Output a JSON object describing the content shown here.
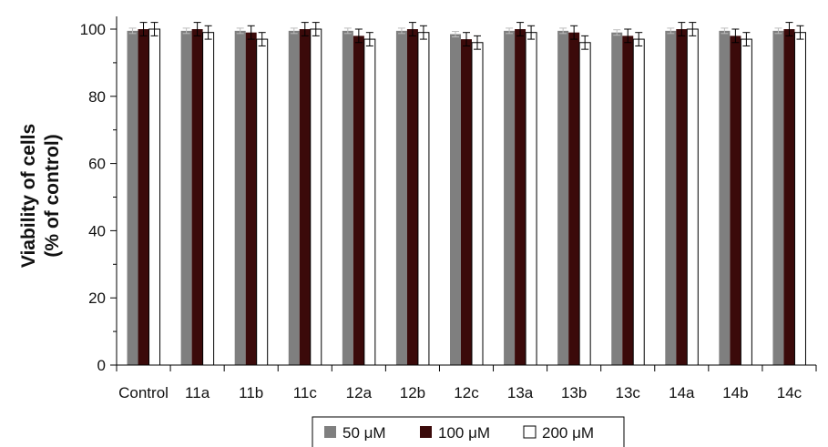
{
  "chart_data": {
    "type": "bar",
    "title": "",
    "xlabel": "",
    "ylabel_line1": "Viability of cells",
    "ylabel_line2": "(% of control)",
    "ylim": [
      0,
      105
    ],
    "yticks": [
      0,
      20,
      40,
      60,
      80,
      100
    ],
    "categories": [
      "Control",
      "11a",
      "11b",
      "11c",
      "12a",
      "12b",
      "12c",
      "13a",
      "13b",
      "13c",
      "14a",
      "14b",
      "14c"
    ],
    "series": [
      {
        "name": "50 μM",
        "color": "#7f7f7f",
        "values": [
          99.5,
          99.5,
          99.5,
          99.5,
          99.5,
          99.5,
          98.5,
          99.5,
          99.5,
          99,
          99.5,
          99.5,
          99.5
        ],
        "errors": [
          0.8,
          0.8,
          0.8,
          0.8,
          0.8,
          0.8,
          0.8,
          0.8,
          0.8,
          0.8,
          0.8,
          0.8,
          0.8
        ]
      },
      {
        "name": "100 μM",
        "color": "#3b0a0a",
        "values": [
          100,
          100,
          99,
          100,
          98,
          100,
          97,
          100,
          99,
          98,
          100,
          98,
          100
        ],
        "errors": [
          2,
          2,
          2,
          2,
          2,
          2,
          2,
          2,
          2,
          2,
          2,
          2,
          2
        ]
      },
      {
        "name": "200 μM",
        "color": "#ffffff",
        "values": [
          100,
          99,
          97,
          100,
          97,
          99,
          96,
          99,
          96,
          97,
          100,
          97,
          99
        ],
        "errors": [
          2,
          2,
          2,
          2,
          2,
          2,
          2,
          2,
          2,
          2,
          2,
          2,
          2
        ]
      }
    ],
    "legend": {
      "position": "bottom-center",
      "entries": [
        "50 μM",
        "100 μM",
        "200 μM"
      ]
    },
    "grid": false
  }
}
